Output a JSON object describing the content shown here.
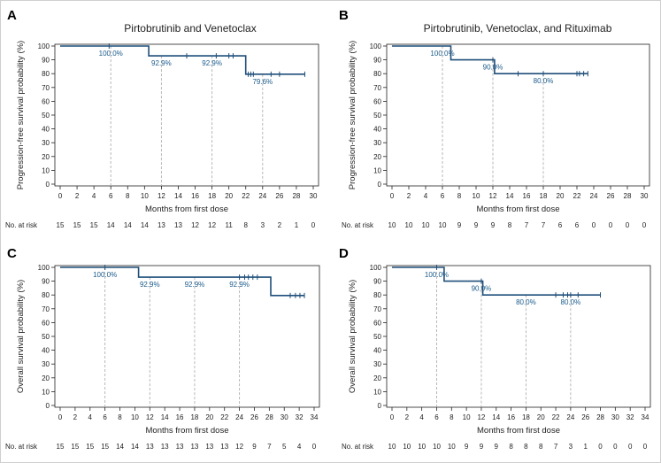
{
  "figure": {
    "border_color": "#cfcfcf"
  },
  "colors": {
    "curve": "#1f4e79",
    "annotation": "#1a5a8a",
    "guide": "#b0b0b0",
    "axis": "#222222"
  },
  "chart_data": [
    {
      "panel": "A",
      "type": "line",
      "step": true,
      "title": "Pirtobrutinib and Venetoclax",
      "ylabel": "Progression-free survival probability (%)",
      "xlabel": "Months from first dose",
      "xlim": [
        0,
        30
      ],
      "xticks": [
        0,
        2,
        4,
        6,
        8,
        10,
        12,
        14,
        16,
        18,
        20,
        22,
        24,
        26,
        28,
        30
      ],
      "ylim": [
        0,
        100
      ],
      "yticks": [
        0,
        10,
        20,
        30,
        40,
        50,
        60,
        70,
        80,
        90,
        100
      ],
      "curve": [
        [
          0,
          100
        ],
        [
          10.5,
          100
        ],
        [
          10.5,
          92.9
        ],
        [
          22,
          92.9
        ],
        [
          22,
          79.6
        ],
        [
          29,
          79.6
        ]
      ],
      "censors": [
        [
          5.8,
          100
        ],
        [
          15,
          92.9
        ],
        [
          18.5,
          92.9
        ],
        [
          20,
          92.9
        ],
        [
          20.5,
          92.9
        ],
        [
          22.3,
          79.6
        ],
        [
          22.6,
          79.6
        ],
        [
          22.9,
          79.6
        ],
        [
          25,
          79.6
        ],
        [
          26,
          79.6
        ],
        [
          29,
          79.6
        ]
      ],
      "annotations": [
        {
          "x": 6,
          "y": 100,
          "label": "100.0%"
        },
        {
          "x": 12,
          "y": 92.9,
          "label": "92.9%"
        },
        {
          "x": 18,
          "y": 92.9,
          "label": "92.9%"
        },
        {
          "x": 24,
          "y": 79.6,
          "label": "79.6%"
        }
      ],
      "at_risk_label": "No. at risk",
      "at_risk": [
        "15",
        "15",
        "15",
        "14",
        "14",
        "14",
        "13",
        "13",
        "12",
        "12",
        "11",
        "8",
        "3",
        "2",
        "1",
        "0"
      ]
    },
    {
      "panel": "B",
      "type": "line",
      "step": true,
      "title": "Pirtobrutinib, Venetoclax, and Rituximab",
      "ylabel": "Progression-free survival probability (%)",
      "xlabel": "Months from first dose",
      "xlim": [
        0,
        30
      ],
      "xticks": [
        0,
        2,
        4,
        6,
        8,
        10,
        12,
        14,
        16,
        18,
        20,
        22,
        24,
        26,
        28,
        30
      ],
      "ylim": [
        0,
        100
      ],
      "yticks": [
        0,
        10,
        20,
        30,
        40,
        50,
        60,
        70,
        80,
        90,
        100
      ],
      "curve": [
        [
          0,
          100
        ],
        [
          7,
          100
        ],
        [
          7,
          90
        ],
        [
          12.2,
          90
        ],
        [
          12.2,
          80
        ],
        [
          23.3,
          80
        ]
      ],
      "censors": [
        [
          12,
          90
        ],
        [
          15,
          80
        ],
        [
          18,
          80
        ],
        [
          22,
          80
        ],
        [
          22.3,
          80
        ],
        [
          22.8,
          80
        ],
        [
          23.3,
          80
        ]
      ],
      "annotations": [
        {
          "x": 6,
          "y": 100,
          "label": "100.0%"
        },
        {
          "x": 12,
          "y": 90,
          "label": "90.0%"
        },
        {
          "x": 18,
          "y": 80,
          "label": "80.0%"
        }
      ],
      "at_risk_label": "No. at risk",
      "at_risk": [
        "10",
        "10",
        "10",
        "10",
        "9",
        "9",
        "9",
        "8",
        "7",
        "7",
        "6",
        "6",
        "0",
        "0",
        "0",
        "0"
      ]
    },
    {
      "panel": "C",
      "type": "line",
      "step": true,
      "title": "",
      "ylabel": "Overall survival probability (%)",
      "xlabel": "Months from first dose",
      "xlim": [
        0,
        34
      ],
      "xticks": [
        0,
        2,
        4,
        6,
        8,
        10,
        12,
        14,
        16,
        18,
        20,
        22,
        24,
        26,
        28,
        30,
        32,
        34
      ],
      "ylim": [
        0,
        100
      ],
      "yticks": [
        0,
        10,
        20,
        30,
        40,
        50,
        60,
        70,
        80,
        90,
        100
      ],
      "curve": [
        [
          0,
          100
        ],
        [
          10.5,
          100
        ],
        [
          10.5,
          92.9
        ],
        [
          28.2,
          92.9
        ],
        [
          28.2,
          79.6
        ],
        [
          32.7,
          79.6
        ]
      ],
      "censors": [
        [
          6,
          100
        ],
        [
          24,
          92.9
        ],
        [
          24.7,
          92.9
        ],
        [
          25.2,
          92.9
        ],
        [
          25.8,
          92.9
        ],
        [
          26.4,
          92.9
        ],
        [
          30.8,
          79.6
        ],
        [
          31.5,
          79.6
        ],
        [
          32.1,
          79.6
        ],
        [
          32.7,
          79.6
        ]
      ],
      "annotations": [
        {
          "x": 6,
          "y": 100,
          "label": "100.0%"
        },
        {
          "x": 12,
          "y": 92.9,
          "label": "92.9%"
        },
        {
          "x": 18,
          "y": 92.9,
          "label": "92.9%"
        },
        {
          "x": 24,
          "y": 92.9,
          "label": "92.9%"
        }
      ],
      "at_risk_label": "No. at risk",
      "at_risk": [
        "15",
        "15",
        "15",
        "15",
        "14",
        "14",
        "13",
        "13",
        "13",
        "13",
        "13",
        "13",
        "12",
        "9",
        "7",
        "5",
        "4",
        "0"
      ]
    },
    {
      "panel": "D",
      "type": "line",
      "step": true,
      "title": "",
      "ylabel": "Overall survival probability (%)",
      "xlabel": "Months from first dose",
      "xlim": [
        0,
        34
      ],
      "xticks": [
        0,
        2,
        4,
        6,
        8,
        10,
        12,
        14,
        16,
        18,
        20,
        22,
        24,
        26,
        28,
        30,
        32,
        34
      ],
      "ylim": [
        0,
        100
      ],
      "yticks": [
        0,
        10,
        20,
        30,
        40,
        50,
        60,
        70,
        80,
        90,
        100
      ],
      "curve": [
        [
          0,
          100
        ],
        [
          7,
          100
        ],
        [
          7,
          90
        ],
        [
          12.2,
          90
        ],
        [
          12.2,
          80
        ],
        [
          28,
          80
        ]
      ],
      "censors": [
        [
          6,
          100
        ],
        [
          12,
          90
        ],
        [
          22,
          80
        ],
        [
          23,
          80
        ],
        [
          23.6,
          80
        ],
        [
          24,
          80
        ],
        [
          25,
          80
        ],
        [
          28,
          80
        ]
      ],
      "annotations": [
        {
          "x": 6,
          "y": 100,
          "label": "100.0%"
        },
        {
          "x": 12,
          "y": 90,
          "label": "90.0%"
        },
        {
          "x": 18,
          "y": 80,
          "label": "80.0%"
        },
        {
          "x": 24,
          "y": 80,
          "label": "80.0%"
        }
      ],
      "at_risk_label": "No. at risk",
      "at_risk": [
        "10",
        "10",
        "10",
        "10",
        "10",
        "9",
        "9",
        "9",
        "8",
        "8",
        "8",
        "7",
        "3",
        "1",
        "0",
        "0",
        "0",
        "0"
      ]
    }
  ]
}
